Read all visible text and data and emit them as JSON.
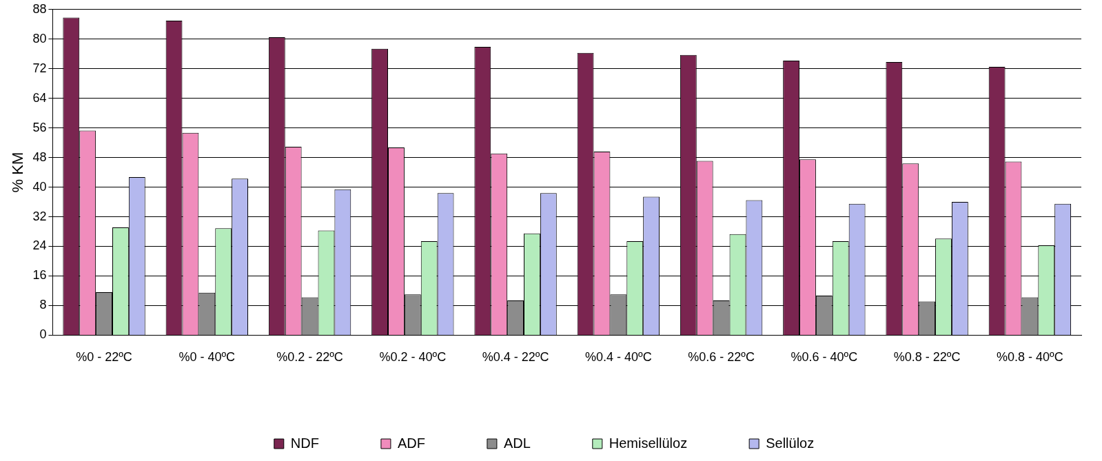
{
  "chart_data": {
    "type": "bar",
    "ylabel": "% KM",
    "categories": [
      "%0 - 22ºC",
      "%0 - 40ºC",
      "%0.2 - 22ºC",
      "%0.2 - 40ºC",
      "%0.4 - 22ºC",
      "%0.4 - 40ºC",
      "%0.6 - 22ºC",
      "%0.6 - 40ºC",
      "%0.8 - 22ºC",
      "%0.8 - 40ºC"
    ],
    "series": [
      {
        "name": "NDF",
        "color": "#7a2550",
        "values": [
          85.8,
          85.0,
          80.5,
          77.4,
          77.9,
          76.3,
          75.7,
          74.2,
          73.8,
          72.5
        ]
      },
      {
        "name": "ADF",
        "color": "#f08cbc",
        "values": [
          55.3,
          54.7,
          50.9,
          50.7,
          49.1,
          49.6,
          47.1,
          47.5,
          46.4,
          46.9
        ]
      },
      {
        "name": "ADL",
        "color": "#8c8c8c",
        "values": [
          11.6,
          11.5,
          10.2,
          11.0,
          9.4,
          11.0,
          9.4,
          10.7,
          9.1,
          10.2
        ]
      },
      {
        "name": "Hemisellüloz",
        "color": "#b4ecbc",
        "values": [
          29.1,
          28.9,
          28.3,
          25.4,
          27.5,
          25.4,
          27.3,
          25.4,
          26.1,
          24.3
        ]
      },
      {
        "name": "Sellüloz",
        "color": "#b4b8ee",
        "values": [
          42.7,
          42.3,
          39.4,
          38.4,
          38.4,
          37.4,
          36.5,
          35.5,
          36.0,
          35.5
        ]
      }
    ],
    "ylim": [
      0,
      88
    ],
    "yticks": [
      0,
      8,
      16,
      24,
      32,
      40,
      48,
      56,
      64,
      72,
      80,
      88
    ],
    "grid": "y",
    "legend": "bottom"
  }
}
